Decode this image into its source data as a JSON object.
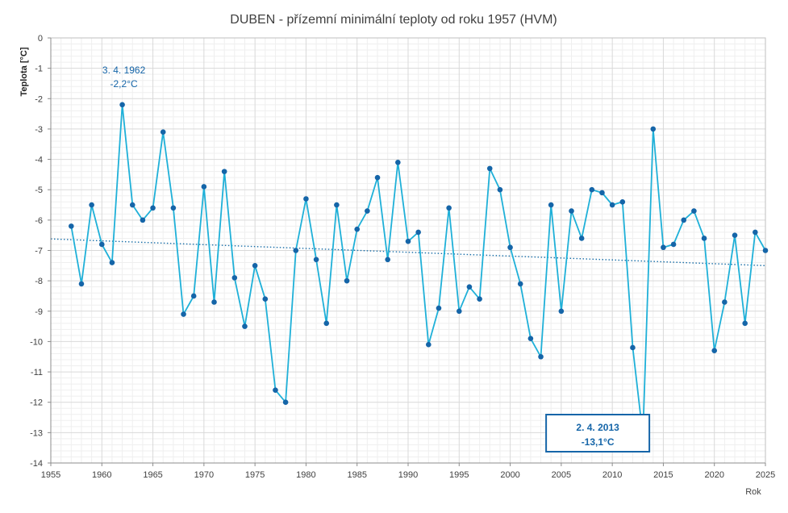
{
  "chart_data": {
    "type": "line",
    "title": "DUBEN - přízemní minimální teploty od roku 1957 (HVM)",
    "xlabel": "Rok",
    "ylabel": "Teplota [°C]",
    "xlim": [
      1955,
      2025
    ],
    "ylim": [
      -14,
      0
    ],
    "x_ticks": [
      1955,
      1960,
      1965,
      1970,
      1975,
      1980,
      1985,
      1990,
      1995,
      2000,
      2005,
      2010,
      2015,
      2020,
      2025
    ],
    "y_ticks": [
      0,
      -1,
      -2,
      -3,
      -4,
      -5,
      -6,
      -7,
      -8,
      -9,
      -10,
      -11,
      -12,
      -13,
      -14
    ],
    "grid": true,
    "series": [
      {
        "color": "#1fb0d8",
        "marker_color": "#1565a8",
        "x": [
          1957,
          1958,
          1959,
          1960,
          1961,
          1962,
          1963,
          1964,
          1965,
          1966,
          1967,
          1968,
          1969,
          1970,
          1971,
          1972,
          1973,
          1974,
          1975,
          1976,
          1977,
          1978,
          1979,
          1980,
          1981,
          1982,
          1983,
          1984,
          1985,
          1986,
          1987,
          1988,
          1989,
          1990,
          1991,
          1992,
          1993,
          1994,
          1995,
          1996,
          1997,
          1998,
          1999,
          2000,
          2001,
          2002,
          2003,
          2004,
          2005,
          2006,
          2007,
          2008,
          2009,
          2010,
          2011,
          2012,
          2013,
          2014,
          2015,
          2016,
          2017,
          2018,
          2019,
          2020,
          2021,
          2022,
          2023,
          2024,
          2025
        ],
        "y": [
          -6.2,
          -8.1,
          -5.5,
          -6.8,
          -7.4,
          -2.2,
          -5.5,
          -6.0,
          -5.6,
          -3.1,
          -5.6,
          -9.1,
          -8.5,
          -4.9,
          -8.7,
          -4.4,
          -7.9,
          -9.5,
          -7.5,
          -8.6,
          -11.6,
          -12.0,
          -7.0,
          -5.3,
          -7.3,
          -9.4,
          -5.5,
          -8.0,
          -6.3,
          -5.7,
          -4.6,
          -7.3,
          -4.1,
          -6.7,
          -6.4,
          -10.1,
          -8.9,
          -5.6,
          -9.0,
          -8.2,
          -8.6,
          -4.3,
          -5.0,
          -6.9,
          -8.1,
          -9.9,
          -10.5,
          -5.5,
          -9.0,
          -5.7,
          -6.6,
          -5.0,
          -5.1,
          -5.5,
          -5.4,
          -10.2,
          -13.1,
          -3.0,
          -6.9,
          -6.8,
          -6.0,
          -5.7,
          -6.6,
          -10.3,
          -8.7,
          -6.5,
          -9.4,
          -6.4,
          -7.0
        ]
      }
    ],
    "trendline": {
      "style": "dotted",
      "color": "#1a6fa8",
      "x": [
        1955,
        2025
      ],
      "y": [
        -6.62,
        -7.5
      ]
    },
    "annotations": [
      {
        "date": "3. 4. 1962",
        "value": "-2,2°C",
        "x": 1962,
        "y": -2.2,
        "boxed": false
      },
      {
        "date": "2. 4. 2013",
        "value": "-13,1°C",
        "x": 2013,
        "y": -13.1,
        "boxed": true
      }
    ]
  }
}
